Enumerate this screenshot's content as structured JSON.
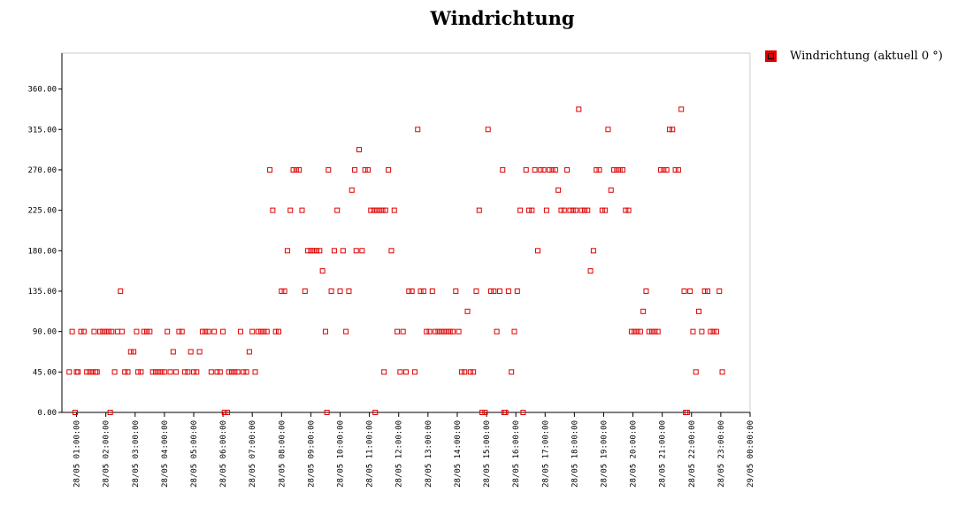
{
  "chart_data": {
    "type": "scatter",
    "title": "Windrichtung",
    "xlabel": "",
    "ylabel": "",
    "ylim": [
      0,
      400
    ],
    "y_ticks": [
      0,
      45,
      90,
      135,
      180,
      225,
      270,
      315,
      360
    ],
    "y_tick_labels": [
      "0.00",
      "45.00",
      "90.00",
      "135.00",
      "180.00",
      "225.00",
      "270.00",
      "315.00",
      "360.00"
    ],
    "x_range_hours": [
      0.5,
      24.0
    ],
    "x_tick_hours": [
      1,
      2,
      3,
      4,
      5,
      6,
      7,
      8,
      9,
      10,
      11,
      12,
      13,
      14,
      15,
      16,
      17,
      18,
      19,
      20,
      21,
      22,
      23,
      24
    ],
    "x_tick_labels": [
      "28/05 01:00:00",
      "28/05 02:00:00",
      "28/05 03:00:00",
      "28/05 04:00:00",
      "28/05 05:00:00",
      "28/05 06:00:00",
      "28/05 07:00:00",
      "28/05 08:00:00",
      "28/05 09:00:00",
      "28/05 10:00:00",
      "28/05 11:00:00",
      "28/05 12:00:00",
      "28/05 13:00:00",
      "28/05 14:00:00",
      "28/05 15:00:00",
      "28/05 16:00:00",
      "28/05 17:00:00",
      "28/05 18:00:00",
      "28/05 19:00:00",
      "28/05 20:00:00",
      "28/05 21:00:00",
      "28/05 22:00:00",
      "28/05 23:00:00",
      "29/05 00:00:00"
    ],
    "legend_position": "right",
    "grid": false,
    "series": [
      {
        "name": "Windrichtung (aktuell 0 °)",
        "color": "#e00000",
        "points": [
          [
            0.75,
            45
          ],
          [
            0.85,
            90
          ],
          [
            0.95,
            0
          ],
          [
            1.0,
            45
          ],
          [
            1.05,
            45
          ],
          [
            1.15,
            90
          ],
          [
            1.25,
            90
          ],
          [
            1.35,
            45
          ],
          [
            1.45,
            45
          ],
          [
            1.55,
            45
          ],
          [
            1.6,
            90
          ],
          [
            1.65,
            45
          ],
          [
            1.7,
            45
          ],
          [
            1.8,
            90
          ],
          [
            1.9,
            90
          ],
          [
            2.0,
            90
          ],
          [
            2.1,
            90
          ],
          [
            2.15,
            0
          ],
          [
            2.2,
            90
          ],
          [
            2.3,
            45
          ],
          [
            2.4,
            90
          ],
          [
            2.5,
            135
          ],
          [
            2.55,
            90
          ],
          [
            2.65,
            45
          ],
          [
            2.75,
            45
          ],
          [
            2.85,
            67.5
          ],
          [
            2.95,
            67.5
          ],
          [
            3.05,
            90
          ],
          [
            3.1,
            45
          ],
          [
            3.2,
            45
          ],
          [
            3.3,
            90
          ],
          [
            3.4,
            90
          ],
          [
            3.5,
            90
          ],
          [
            3.6,
            45
          ],
          [
            3.7,
            45
          ],
          [
            3.8,
            45
          ],
          [
            3.9,
            45
          ],
          [
            4.0,
            45
          ],
          [
            4.1,
            90
          ],
          [
            4.2,
            45
          ],
          [
            4.3,
            67.5
          ],
          [
            4.4,
            45
          ],
          [
            4.5,
            90
          ],
          [
            4.6,
            90
          ],
          [
            4.7,
            45
          ],
          [
            4.8,
            45
          ],
          [
            4.9,
            67.5
          ],
          [
            5.0,
            45
          ],
          [
            5.1,
            45
          ],
          [
            5.2,
            67.5
          ],
          [
            5.3,
            90
          ],
          [
            5.4,
            90
          ],
          [
            5.5,
            90
          ],
          [
            5.6,
            45
          ],
          [
            5.7,
            90
          ],
          [
            5.8,
            45
          ],
          [
            5.9,
            45
          ],
          [
            6.0,
            90
          ],
          [
            6.05,
            0
          ],
          [
            6.15,
            0
          ],
          [
            6.2,
            45
          ],
          [
            6.3,
            45
          ],
          [
            6.4,
            45
          ],
          [
            6.5,
            45
          ],
          [
            6.6,
            90
          ],
          [
            6.7,
            45
          ],
          [
            6.8,
            45
          ],
          [
            6.9,
            67.5
          ],
          [
            7.0,
            90
          ],
          [
            7.1,
            45
          ],
          [
            7.2,
            90
          ],
          [
            7.3,
            90
          ],
          [
            7.4,
            90
          ],
          [
            7.5,
            90
          ],
          [
            7.6,
            270
          ],
          [
            7.7,
            225
          ],
          [
            7.8,
            90
          ],
          [
            7.9,
            90
          ],
          [
            8.0,
            135
          ],
          [
            8.1,
            135
          ],
          [
            8.2,
            180
          ],
          [
            8.3,
            225
          ],
          [
            8.4,
            270
          ],
          [
            8.5,
            270
          ],
          [
            8.6,
            270
          ],
          [
            8.7,
            225
          ],
          [
            8.8,
            135
          ],
          [
            8.9,
            180
          ],
          [
            9.0,
            180
          ],
          [
            9.1,
            180
          ],
          [
            9.2,
            180
          ],
          [
            9.3,
            180
          ],
          [
            9.4,
            157.5
          ],
          [
            9.5,
            90
          ],
          [
            9.55,
            0
          ],
          [
            9.6,
            270
          ],
          [
            9.7,
            135
          ],
          [
            9.8,
            180
          ],
          [
            9.9,
            225
          ],
          [
            10.0,
            135
          ],
          [
            10.1,
            180
          ],
          [
            10.2,
            90
          ],
          [
            10.3,
            135
          ],
          [
            10.4,
            247.5
          ],
          [
            10.5,
            270
          ],
          [
            10.55,
            180
          ],
          [
            10.65,
            292.5
          ],
          [
            10.75,
            180
          ],
          [
            10.85,
            270
          ],
          [
            10.95,
            270
          ],
          [
            11.05,
            225
          ],
          [
            11.15,
            225
          ],
          [
            11.2,
            0
          ],
          [
            11.25,
            225
          ],
          [
            11.35,
            225
          ],
          [
            11.45,
            225
          ],
          [
            11.5,
            45
          ],
          [
            11.55,
            225
          ],
          [
            11.65,
            270
          ],
          [
            11.75,
            180
          ],
          [
            11.85,
            225
          ],
          [
            11.95,
            90
          ],
          [
            12.05,
            45
          ],
          [
            12.15,
            90
          ],
          [
            12.25,
            45
          ],
          [
            12.35,
            135
          ],
          [
            12.45,
            135
          ],
          [
            12.55,
            45
          ],
          [
            12.65,
            315
          ],
          [
            12.75,
            135
          ],
          [
            12.85,
            135
          ],
          [
            12.95,
            90
          ],
          [
            13.05,
            90
          ],
          [
            13.15,
            135
          ],
          [
            13.25,
            90
          ],
          [
            13.35,
            90
          ],
          [
            13.45,
            90
          ],
          [
            13.55,
            90
          ],
          [
            13.65,
            90
          ],
          [
            13.75,
            90
          ],
          [
            13.85,
            90
          ],
          [
            13.95,
            135
          ],
          [
            14.05,
            90
          ],
          [
            14.15,
            45
          ],
          [
            14.25,
            45
          ],
          [
            14.35,
            112.5
          ],
          [
            14.45,
            45
          ],
          [
            14.55,
            45
          ],
          [
            14.65,
            135
          ],
          [
            14.75,
            225
          ],
          [
            14.85,
            0
          ],
          [
            14.95,
            0
          ],
          [
            15.05,
            315
          ],
          [
            15.15,
            135
          ],
          [
            15.25,
            135
          ],
          [
            15.35,
            90
          ],
          [
            15.45,
            135
          ],
          [
            15.55,
            270
          ],
          [
            15.6,
            0
          ],
          [
            15.65,
            0
          ],
          [
            15.75,
            135
          ],
          [
            15.85,
            45
          ],
          [
            15.95,
            90
          ],
          [
            16.05,
            135
          ],
          [
            16.15,
            225
          ],
          [
            16.25,
            0
          ],
          [
            16.35,
            270
          ],
          [
            16.45,
            225
          ],
          [
            16.55,
            225
          ],
          [
            16.65,
            270
          ],
          [
            16.75,
            180
          ],
          [
            16.85,
            270
          ],
          [
            16.95,
            270
          ],
          [
            17.05,
            225
          ],
          [
            17.15,
            270
          ],
          [
            17.25,
            270
          ],
          [
            17.35,
            270
          ],
          [
            17.45,
            247.5
          ],
          [
            17.55,
            225
          ],
          [
            17.65,
            225
          ],
          [
            17.75,
            270
          ],
          [
            17.85,
            225
          ],
          [
            17.95,
            225
          ],
          [
            18.05,
            225
          ],
          [
            18.15,
            337.5
          ],
          [
            18.25,
            225
          ],
          [
            18.35,
            225
          ],
          [
            18.45,
            225
          ],
          [
            18.55,
            157.5
          ],
          [
            18.65,
            180
          ],
          [
            18.75,
            270
          ],
          [
            18.85,
            270
          ],
          [
            18.95,
            225
          ],
          [
            19.05,
            225
          ],
          [
            19.15,
            315
          ],
          [
            19.25,
            247.5
          ],
          [
            19.35,
            270
          ],
          [
            19.45,
            270
          ],
          [
            19.55,
            270
          ],
          [
            19.65,
            270
          ],
          [
            19.75,
            225
          ],
          [
            19.85,
            225
          ],
          [
            19.95,
            90
          ],
          [
            20.05,
            90
          ],
          [
            20.15,
            90
          ],
          [
            20.25,
            90
          ],
          [
            20.35,
            112.5
          ],
          [
            20.45,
            135
          ],
          [
            20.55,
            90
          ],
          [
            20.65,
            90
          ],
          [
            20.75,
            90
          ],
          [
            20.85,
            90
          ],
          [
            20.95,
            270
          ],
          [
            21.05,
            270
          ],
          [
            21.15,
            270
          ],
          [
            21.25,
            315
          ],
          [
            21.35,
            315
          ],
          [
            21.45,
            270
          ],
          [
            21.55,
            270
          ],
          [
            21.65,
            337.5
          ],
          [
            21.75,
            135
          ],
          [
            21.8,
            0
          ],
          [
            21.85,
            0
          ],
          [
            21.95,
            135
          ],
          [
            22.05,
            90
          ],
          [
            22.15,
            45
          ],
          [
            22.25,
            112.5
          ],
          [
            22.35,
            90
          ],
          [
            22.45,
            135
          ],
          [
            22.55,
            135
          ],
          [
            22.65,
            90
          ],
          [
            22.75,
            90
          ],
          [
            22.85,
            90
          ],
          [
            22.95,
            135
          ],
          [
            23.05,
            45
          ]
        ]
      }
    ]
  },
  "legend": {
    "label": "Windrichtung (aktuell 0 °)",
    "color": "#e00000"
  }
}
